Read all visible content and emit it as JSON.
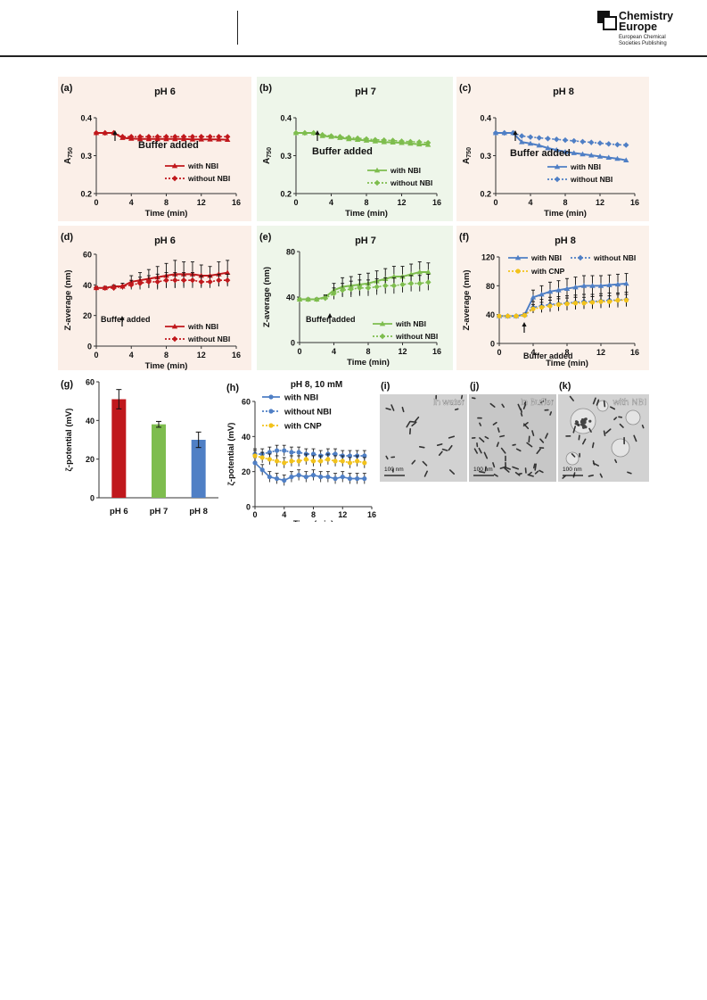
{
  "header": {
    "logo_line1": "Chemistry",
    "logo_line2": "Europe",
    "logo_sub": "European Chemical Societies Publishing"
  },
  "colors": {
    "red": "#c0181c",
    "green": "#7ebd4e",
    "blue": "#4f7fc5",
    "yellow": "#f2c21b",
    "bg_red": "#fbefe8",
    "bg_green": "#eef6ea",
    "bg_blue": "#fbf1ea"
  },
  "chart_data": [
    {
      "panel": "(a)",
      "type": "line",
      "title": "pH 6",
      "xlabel": "Time (min)",
      "ylabel": "A750",
      "ylim": [
        0.2,
        0.4
      ],
      "yticks": [
        "0.2",
        "0.3",
        "0.4"
      ],
      "xlim": [
        0,
        16
      ],
      "xticks": [
        "0",
        "4",
        "8",
        "12",
        "16"
      ],
      "annotation": "Buffer added",
      "x": [
        0,
        1,
        2,
        3,
        4,
        5,
        6,
        7,
        8,
        9,
        10,
        11,
        12,
        13,
        14,
        15
      ],
      "series": [
        {
          "name": "with NBI",
          "values": [
            0.36,
            0.36,
            0.36,
            0.347,
            0.345,
            0.344,
            0.344,
            0.344,
            0.344,
            0.344,
            0.344,
            0.343,
            0.343,
            0.343,
            0.343,
            0.342
          ]
        },
        {
          "name": "without NBI",
          "values": [
            0.36,
            0.36,
            0.36,
            0.35,
            0.35,
            0.35,
            0.35,
            0.35,
            0.35,
            0.35,
            0.35,
            0.35,
            0.35,
            0.35,
            0.35,
            0.35
          ]
        }
      ]
    },
    {
      "panel": "(b)",
      "type": "line",
      "title": "pH 7",
      "xlabel": "Time (min)",
      "ylabel": "A750",
      "ylim": [
        0.2,
        0.4
      ],
      "yticks": [
        "0.2",
        "0.3",
        "0.4"
      ],
      "xlim": [
        0,
        16
      ],
      "xticks": [
        "0",
        "4",
        "8",
        "12",
        "16"
      ],
      "annotation": "Buffer added",
      "x": [
        0,
        1,
        2,
        3,
        4,
        5,
        6,
        7,
        8,
        9,
        10,
        11,
        12,
        13,
        14,
        15
      ],
      "series": [
        {
          "name": "with NBI",
          "values": [
            0.36,
            0.36,
            0.36,
            0.352,
            0.35,
            0.347,
            0.344,
            0.342,
            0.34,
            0.338,
            0.336,
            0.335,
            0.334,
            0.332,
            0.33,
            0.329
          ]
        },
        {
          "name": "without NBI",
          "values": [
            0.36,
            0.36,
            0.36,
            0.355,
            0.352,
            0.35,
            0.348,
            0.346,
            0.344,
            0.342,
            0.341,
            0.34,
            0.338,
            0.337,
            0.336,
            0.334
          ]
        }
      ]
    },
    {
      "panel": "(c)",
      "type": "line",
      "title": "pH 8",
      "xlabel": "Time (min)",
      "ylabel": "A750",
      "ylim": [
        0.2,
        0.4
      ],
      "yticks": [
        "0.2",
        "0.3",
        "0.4"
      ],
      "xlim": [
        0,
        16
      ],
      "xticks": [
        "0",
        "4",
        "8",
        "12",
        "16"
      ],
      "annotation": "Buffer added",
      "x": [
        0,
        1,
        2,
        3,
        4,
        5,
        6,
        7,
        8,
        9,
        10,
        11,
        12,
        13,
        14,
        15
      ],
      "series": [
        {
          "name": "with NBI",
          "values": [
            0.36,
            0.36,
            0.36,
            0.336,
            0.332,
            0.327,
            0.32,
            0.315,
            0.31,
            0.307,
            0.304,
            0.301,
            0.298,
            0.295,
            0.292,
            0.288
          ]
        },
        {
          "name": "without NBI",
          "values": [
            0.36,
            0.36,
            0.36,
            0.352,
            0.349,
            0.347,
            0.345,
            0.343,
            0.341,
            0.339,
            0.337,
            0.335,
            0.333,
            0.331,
            0.329,
            0.328
          ]
        }
      ]
    },
    {
      "panel": "(d)",
      "type": "line",
      "title": "pH 6",
      "xlabel": "Time (min)",
      "ylabel": "Z-average (nm)",
      "ylim": [
        0,
        60
      ],
      "yticks": [
        "0",
        "20",
        "40",
        "60"
      ],
      "xlim": [
        0,
        16
      ],
      "xticks": [
        "0",
        "4",
        "8",
        "12",
        "16"
      ],
      "annotation": "Buffer added",
      "x": [
        0,
        1,
        2,
        3,
        4,
        5,
        6,
        7,
        8,
        9,
        10,
        11,
        12,
        13,
        14,
        15
      ],
      "series": [
        {
          "name": "with NBI",
          "values": [
            38,
            38,
            39,
            39,
            42,
            43,
            44,
            45,
            46,
            47,
            47,
            47,
            46,
            46,
            47,
            48
          ],
          "err": [
            1,
            1,
            1,
            2,
            4,
            5,
            6,
            7,
            8,
            9,
            8,
            8,
            7,
            6,
            8,
            8
          ]
        },
        {
          "name": "without NBI",
          "values": [
            38,
            38,
            38,
            39,
            40,
            41,
            42,
            42,
            43,
            43,
            43,
            43,
            42,
            42,
            43,
            43
          ],
          "err": [
            1,
            1,
            1,
            2,
            3,
            4,
            4,
            5,
            5,
            5,
            5,
            5,
            4,
            4,
            4,
            4
          ]
        }
      ]
    },
    {
      "panel": "(e)",
      "type": "line",
      "title": "pH 7",
      "xlabel": "Time (min)",
      "ylabel": "Z-average (nm)",
      "ylim": [
        0,
        80
      ],
      "yticks": [
        "0",
        "40",
        "80"
      ],
      "xlim": [
        0,
        16
      ],
      "xticks": [
        "0",
        "4",
        "8",
        "12",
        "16"
      ],
      "annotation": "Buffer added",
      "x": [
        0,
        1,
        2,
        3,
        4,
        5,
        6,
        7,
        8,
        9,
        10,
        11,
        12,
        13,
        14,
        15
      ],
      "series": [
        {
          "name": "with NBI",
          "values": [
            38,
            38,
            38,
            40,
            46,
            49,
            50,
            51,
            52,
            54,
            56,
            58,
            58,
            60,
            62,
            62
          ],
          "err": [
            1,
            1,
            1,
            2,
            6,
            8,
            8,
            9,
            9,
            9,
            9,
            9,
            9,
            9,
            9,
            8
          ]
        },
        {
          "name": "without NBI",
          "values": [
            38,
            38,
            38,
            39,
            43,
            46,
            47,
            48,
            48,
            49,
            50,
            50,
            51,
            52,
            52,
            53
          ],
          "err": [
            1,
            1,
            1,
            2,
            5,
            6,
            7,
            7,
            7,
            7,
            7,
            7,
            7,
            7,
            7,
            7
          ]
        }
      ]
    },
    {
      "panel": "(f)",
      "type": "line",
      "title": "pH 8",
      "xlabel": "Time (min)",
      "ylabel": "Z-average (nm)",
      "ylim": [
        0,
        120
      ],
      "yticks": [
        "0",
        "40",
        "80",
        "120"
      ],
      "xlim": [
        0,
        16
      ],
      "xticks": [
        "0",
        "4",
        "8",
        "12",
        "16"
      ],
      "annotation": "Buffer added",
      "x": [
        0,
        1,
        2,
        3,
        4,
        5,
        6,
        7,
        8,
        9,
        10,
        11,
        12,
        13,
        14,
        15
      ],
      "series": [
        {
          "name": "with NBI",
          "values": [
            38,
            38,
            38,
            40,
            64,
            68,
            72,
            74,
            76,
            78,
            80,
            80,
            80,
            81,
            82,
            83
          ],
          "err": [
            1,
            1,
            1,
            2,
            10,
            12,
            13,
            13,
            14,
            14,
            14,
            14,
            14,
            14,
            14,
            14
          ]
        },
        {
          "name": "without NBI",
          "values": [
            38,
            38,
            38,
            39,
            50,
            52,
            54,
            55,
            56,
            57,
            58,
            58,
            59,
            60,
            60,
            61
          ],
          "err": [
            1,
            1,
            1,
            2,
            8,
            9,
            10,
            10,
            10,
            10,
            10,
            10,
            10,
            10,
            10,
            10
          ]
        },
        {
          "name": "with CNP",
          "values": [
            38,
            38,
            38,
            39,
            48,
            50,
            52,
            54,
            55,
            56,
            56,
            57,
            58,
            58,
            60,
            60
          ],
          "err": [
            1,
            1,
            1,
            2,
            6,
            7,
            8,
            8,
            8,
            8,
            8,
            8,
            8,
            8,
            8,
            8
          ]
        }
      ]
    },
    {
      "panel": "(g)",
      "type": "bar",
      "xlabel": "",
      "ylabel": "ζ-potential (mV)",
      "ylim": [
        0,
        60
      ],
      "yticks": [
        "0",
        "20",
        "40",
        "60"
      ],
      "categories": [
        "pH 6",
        "pH 7",
        "pH 8"
      ],
      "values": [
        51,
        38,
        30
      ],
      "err": [
        5,
        1.5,
        4
      ]
    },
    {
      "panel": "(h)",
      "type": "line",
      "title": "pH 8, 10 mM",
      "xlabel": "Time (min)",
      "ylabel": "ζ-potential (mV)",
      "ylim": [
        0,
        60
      ],
      "yticks": [
        "0",
        "20",
        "40",
        "60"
      ],
      "xlim": [
        0,
        16
      ],
      "xticks": [
        "0",
        "4",
        "8",
        "12",
        "16"
      ],
      "x": [
        0,
        1,
        2,
        3,
        4,
        5,
        6,
        7,
        8,
        9,
        10,
        11,
        12,
        13,
        14,
        15
      ],
      "series": [
        {
          "name": "with NBI",
          "values": [
            25,
            21,
            17,
            16,
            15,
            17,
            18,
            17,
            18,
            17,
            17,
            16,
            17,
            16,
            16,
            16
          ],
          "err": [
            3,
            3,
            3,
            3,
            3,
            3,
            3,
            3,
            3,
            3,
            3,
            3,
            3,
            3,
            3,
            3
          ]
        },
        {
          "name": "without NBI",
          "values": [
            30,
            30,
            31,
            32,
            32,
            31,
            31,
            30,
            30,
            29,
            30,
            30,
            29,
            29,
            29,
            29
          ],
          "err": [
            3,
            3,
            3,
            3,
            3,
            3,
            3,
            3,
            3,
            3,
            3,
            3,
            3,
            3,
            3,
            3
          ]
        },
        {
          "name": "with CNP",
          "values": [
            29,
            28,
            27,
            26,
            25,
            26,
            26,
            27,
            26,
            26,
            27,
            26,
            26,
            25,
            26,
            25
          ],
          "err": [
            3,
            3,
            3,
            3,
            3,
            3,
            3,
            3,
            3,
            3,
            3,
            3,
            3,
            3,
            3,
            3
          ]
        }
      ]
    }
  ],
  "tem": [
    {
      "panel": "(i)",
      "label": "In water",
      "scale": "100 nm"
    },
    {
      "panel": "(j)",
      "label": "In Buffer",
      "scale": "100 nm"
    },
    {
      "panel": "(k)",
      "label": "with NBI",
      "scale": "100 nm"
    }
  ]
}
